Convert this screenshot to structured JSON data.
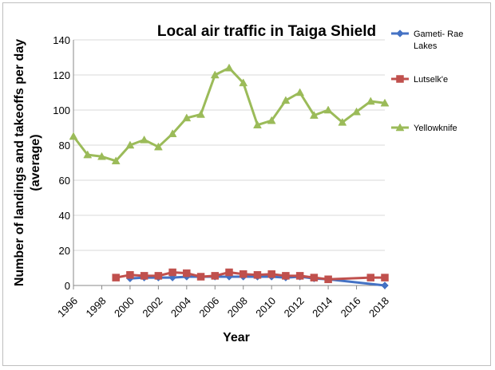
{
  "chart_data": {
    "type": "line",
    "title": "Local air traffic in Taiga Shield",
    "xlabel": "Year",
    "ylabel": "Number of landings and takeoffs per day (average)",
    "ylabel_lines": [
      "Number of landings and takeoffs per day",
      "(average)"
    ],
    "xlim": [
      1996,
      2018
    ],
    "ylim": [
      0,
      140
    ],
    "yticks": [
      0,
      20,
      40,
      60,
      80,
      100,
      120,
      140
    ],
    "xticks": [
      1996,
      1998,
      2000,
      2002,
      2004,
      2006,
      2008,
      2010,
      2012,
      2014,
      2016,
      2018
    ],
    "grid": "horizontal",
    "legend_position": "right",
    "series": [
      {
        "name": "Gameti- Rae Lakes",
        "name_lines": [
          "Gameti- Rae",
          "Lakes"
        ],
        "color": "#4472c4",
        "marker": "diamond",
        "x": [
          2000,
          2001,
          2002,
          2003,
          2004,
          2005,
          2006,
          2007,
          2008,
          2009,
          2010,
          2011,
          2012,
          2013,
          2014,
          2018
        ],
        "values": [
          4,
          4.5,
          4.5,
          4.5,
          5,
          5,
          5,
          5,
          5,
          5,
          5,
          4.5,
          5,
          4,
          3.5,
          0
        ]
      },
      {
        "name": "Lutselk'e",
        "name_lines": [
          "Lutselk'e"
        ],
        "color": "#c0504d",
        "marker": "square",
        "x": [
          1999,
          2000,
          2001,
          2002,
          2003,
          2004,
          2005,
          2006,
          2007,
          2008,
          2009,
          2010,
          2011,
          2012,
          2013,
          2014,
          2017,
          2018
        ],
        "values": [
          4.5,
          6,
          5.5,
          5.5,
          7.5,
          7,
          5,
          5.5,
          7.5,
          6.5,
          6,
          6.5,
          5.5,
          5.5,
          4.5,
          3.5,
          4.5,
          4.5
        ]
      },
      {
        "name": "Yellowknife",
        "name_lines": [
          "Yellowknife"
        ],
        "color": "#9bbb59",
        "marker": "triangle",
        "x": [
          1996,
          1997,
          1998,
          1999,
          2000,
          2001,
          2002,
          2003,
          2004,
          2005,
          2006,
          2007,
          2008,
          2009,
          2010,
          2011,
          2012,
          2013,
          2014,
          2015,
          2016,
          2017,
          2018
        ],
        "values": [
          85,
          74.5,
          73.5,
          71,
          80,
          83,
          79,
          86.5,
          95.5,
          97.5,
          120,
          124,
          115.5,
          91.5,
          94,
          105.5,
          110,
          97,
          100,
          93,
          99,
          105,
          104
        ]
      }
    ]
  }
}
